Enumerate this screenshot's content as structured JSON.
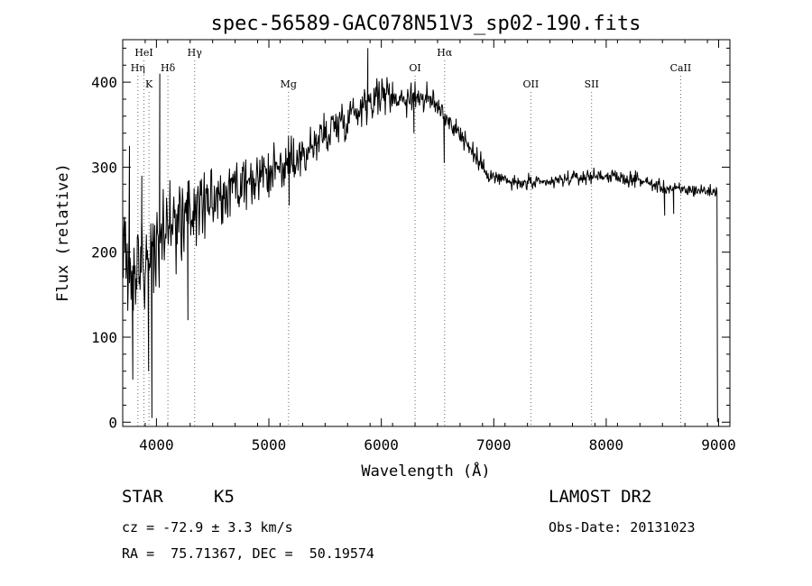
{
  "chart_data": {
    "type": "line",
    "title": "spec-56589-GAC078N51V3_sp02-190.fits",
    "xlabel": "Wavelength (Å)",
    "ylabel": "Flux (relative)",
    "xlim": [
      3700,
      9100
    ],
    "ylim": [
      -5,
      450
    ],
    "xticks": [
      4000,
      5000,
      6000,
      7000,
      8000,
      9000
    ],
    "yticks": [
      0,
      100,
      200,
      300,
      400
    ],
    "grid": false,
    "legend": "none",
    "line_color": "#000000",
    "continuum": {
      "x": [
        3700,
        3750,
        3800,
        3850,
        3900,
        3950,
        4000,
        4100,
        4200,
        4300,
        4400,
        4500,
        4600,
        4700,
        4800,
        4900,
        5000,
        5100,
        5200,
        5300,
        5400,
        5500,
        5600,
        5700,
        5800,
        5900,
        6000,
        6100,
        6200,
        6300,
        6400,
        6500,
        6600,
        6700,
        6800,
        6900,
        7000,
        7100,
        7200,
        7300,
        7400,
        7500,
        7600,
        7700,
        7800,
        7900,
        8000,
        8100,
        8200,
        8300,
        8400,
        8500,
        8600,
        8700,
        8800,
        8900,
        8990
      ],
      "y": [
        240,
        180,
        170,
        190,
        175,
        200,
        210,
        225,
        235,
        245,
        255,
        260,
        265,
        270,
        275,
        285,
        290,
        300,
        305,
        315,
        325,
        340,
        350,
        360,
        370,
        380,
        385,
        385,
        380,
        385,
        380,
        372,
        355,
        340,
        320,
        300,
        288,
        285,
        280,
        282,
        280,
        282,
        285,
        287,
        288,
        290,
        290,
        287,
        286,
        285,
        280,
        276,
        274,
        273,
        273,
        272,
        270
      ]
    },
    "noise_amplitude": {
      "x": [
        3700,
        4000,
        4500,
        5000,
        5500,
        6000,
        6500,
        7000,
        7500,
        8000,
        9000
      ],
      "y": [
        85,
        80,
        55,
        45,
        40,
        32,
        25,
        15,
        12,
        12,
        12
      ]
    },
    "spikes": [
      {
        "x": 3760,
        "y": 325
      },
      {
        "x": 3790,
        "y": 50
      },
      {
        "x": 3870,
        "y": 290
      },
      {
        "x": 3930,
        "y": 60
      },
      {
        "x": 3960,
        "y": 5
      },
      {
        "x": 4030,
        "y": 410
      },
      {
        "x": 4280,
        "y": 120
      },
      {
        "x": 5180,
        "y": 255
      },
      {
        "x": 5880,
        "y": 440
      },
      {
        "x": 6290,
        "y": 340
      },
      {
        "x": 6560,
        "y": 305
      },
      {
        "x": 8520,
        "y": 243
      },
      {
        "x": 8600,
        "y": 245
      },
      {
        "x": 8990,
        "y": 0
      }
    ],
    "line_markers": [
      {
        "label": "HeI",
        "x": 3889,
        "row": 0
      },
      {
        "label": "Hη",
        "x": 3835,
        "row": 1
      },
      {
        "label": "K",
        "x": 3934,
        "row": 2
      },
      {
        "label": "Hδ",
        "x": 4102,
        "row": 1
      },
      {
        "label": "Hγ",
        "x": 4340,
        "row": 0
      },
      {
        "label": "Mg",
        "x": 5175,
        "row": 2
      },
      {
        "label": "OI",
        "x": 6300,
        "row": 1
      },
      {
        "label": "Hα",
        "x": 6563,
        "row": 0
      },
      {
        "label": "OII",
        "x": 7330,
        "row": 2
      },
      {
        "label": "SII",
        "x": 7870,
        "row": 2
      },
      {
        "label": "CaII",
        "x": 8662,
        "row": 1
      }
    ]
  },
  "info": {
    "object_class": "STAR",
    "subclass": "K5",
    "survey": "LAMOST DR2",
    "redshift": "cz = -72.9 ± 3.3 km/s",
    "obs_date": "Obs-Date: 20131023",
    "coords": "RA =  75.71367, DEC =  50.19574"
  }
}
